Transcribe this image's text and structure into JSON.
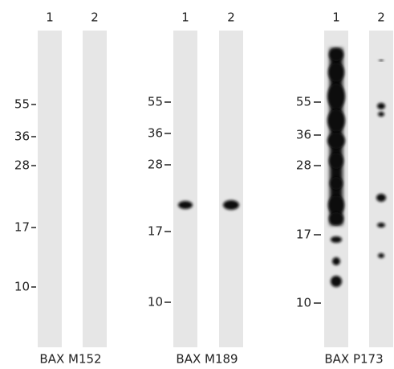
{
  "panels": [
    {
      "lanes": [
        "1",
        "2"
      ],
      "markers": [
        55,
        36,
        28,
        17,
        10
      ],
      "caption": "BAX M152"
    },
    {
      "lanes": [
        "1",
        "2"
      ],
      "markers": [
        55,
        36,
        28,
        17,
        10
      ],
      "caption": "BAX M189"
    },
    {
      "lanes": [
        "1",
        "2"
      ],
      "markers": [
        55,
        36,
        28,
        17,
        10
      ],
      "caption": "BAX P173"
    }
  ]
}
